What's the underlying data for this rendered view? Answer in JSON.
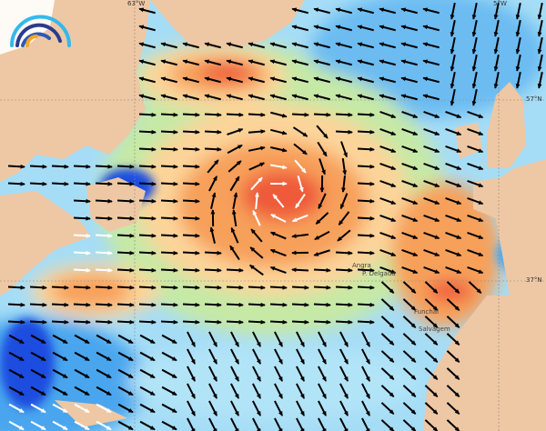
{
  "map": {
    "colors": {
      "land": "#eec8a4",
      "ocean_base": "#a6ddf6",
      "calm": "#4aa6ee",
      "very_calm": "#1e4ee0",
      "mild": "#c6e9a6",
      "moderate": "#fcd49a",
      "strong": "#f7a05a",
      "extreme": "#ef5a3a",
      "arrow": "#000000"
    },
    "grid_labels": {
      "lon_west": "63°W",
      "lon_east": "5°W",
      "lat_north": "57°N",
      "lat_south": "37°N"
    },
    "places": [
      "Angra",
      "P. Delgada",
      "Funchal",
      "Salvagem"
    ],
    "logo_icon": "wave-arcs-logo"
  }
}
